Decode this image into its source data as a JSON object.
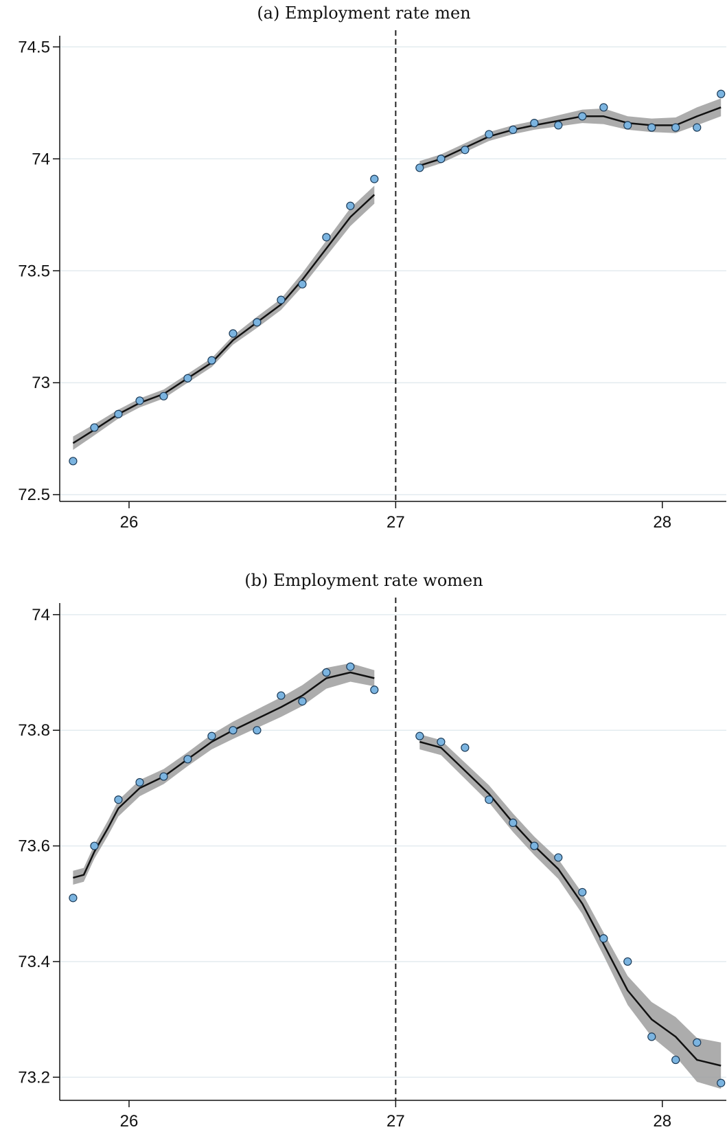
{
  "colors": {
    "marker_fill": "#7bb4e0",
    "marker_stroke": "#1b3a57",
    "fit_line": "#111111",
    "confidence_band": "#9e9e9e",
    "gridline": "#e3ebef",
    "cutoff_line": "#222222"
  },
  "chart_data": [
    {
      "type": "scatter",
      "title": "(a) Employment rate men",
      "xlabel": "",
      "ylabel": "",
      "xlim": [
        25.74,
        28.24
      ],
      "ylim": [
        72.47,
        74.55
      ],
      "x_ticks": [
        26,
        27,
        28
      ],
      "x_tick_labels": [
        "26",
        "27",
        "28"
      ],
      "y_ticks": [
        72.5,
        73,
        73.5,
        74,
        74.5
      ],
      "y_tick_labels": [
        "72.5",
        "73",
        "73.5",
        "74",
        "74.5"
      ],
      "grid": "horizontal",
      "legend": "none",
      "cutoff_x": 27,
      "points": {
        "x": [
          25.79,
          25.87,
          25.96,
          26.04,
          26.13,
          26.22,
          26.31,
          26.39,
          26.48,
          26.57,
          26.65,
          26.74,
          26.83,
          26.92,
          27.09,
          27.17,
          27.26,
          27.35,
          27.44,
          27.52,
          27.61,
          27.7,
          27.78,
          27.87,
          27.96,
          28.05,
          28.13,
          28.22
        ],
        "y": [
          72.65,
          72.8,
          72.86,
          72.92,
          72.94,
          73.02,
          73.1,
          73.22,
          73.27,
          73.37,
          73.44,
          73.65,
          73.79,
          73.91,
          73.96,
          74.0,
          74.04,
          74.11,
          74.13,
          74.16,
          74.15,
          74.19,
          74.23,
          74.15,
          74.14,
          74.14,
          74.14,
          74.29
        ]
      },
      "fit_segments": [
        {
          "x": [
            25.79,
            25.87,
            25.96,
            26.04,
            26.13,
            26.22,
            26.31,
            26.39,
            26.48,
            26.57,
            26.65,
            26.74,
            26.83,
            26.92
          ],
          "y": [
            72.73,
            72.79,
            72.86,
            72.91,
            72.95,
            73.02,
            73.09,
            73.19,
            73.27,
            73.35,
            73.46,
            73.6,
            73.74,
            73.84
          ],
          "band": [
            0.03,
            0.025,
            0.02,
            0.02,
            0.02,
            0.02,
            0.02,
            0.02,
            0.025,
            0.025,
            0.03,
            0.035,
            0.04,
            0.04
          ]
        },
        {
          "x": [
            27.09,
            27.17,
            27.26,
            27.35,
            27.44,
            27.52,
            27.61,
            27.7,
            27.78,
            27.87,
            27.96,
            28.05,
            28.13,
            28.22
          ],
          "y": [
            73.97,
            74.0,
            74.05,
            74.1,
            74.13,
            74.15,
            74.17,
            74.19,
            74.19,
            74.16,
            74.15,
            74.15,
            74.19,
            74.23
          ],
          "band": [
            0.02,
            0.02,
            0.02,
            0.02,
            0.02,
            0.02,
            0.025,
            0.03,
            0.035,
            0.03,
            0.03,
            0.035,
            0.04,
            0.04
          ]
        }
      ]
    },
    {
      "type": "scatter",
      "title": "(b) Employment rate women",
      "xlabel": "",
      "ylabel": "",
      "xlim": [
        25.74,
        28.24
      ],
      "ylim": [
        73.16,
        74.02
      ],
      "x_ticks": [
        26,
        27,
        28
      ],
      "x_tick_labels": [
        "26",
        "27",
        "28"
      ],
      "y_ticks": [
        73.2,
        73.4,
        73.6,
        73.8,
        74
      ],
      "y_tick_labels": [
        "73.2",
        "73.4",
        "73.6",
        "73.8",
        "74"
      ],
      "grid": "horizontal",
      "legend": "none",
      "cutoff_x": 27,
      "points": {
        "x": [
          25.79,
          25.87,
          25.96,
          26.04,
          26.13,
          26.22,
          26.31,
          26.39,
          26.48,
          26.57,
          26.65,
          26.74,
          26.83,
          26.92,
          27.09,
          27.17,
          27.26,
          27.35,
          27.44,
          27.52,
          27.61,
          27.7,
          27.78,
          27.87,
          27.96,
          28.05,
          28.13,
          28.22
        ],
        "y": [
          73.51,
          73.6,
          73.68,
          73.71,
          73.72,
          73.75,
          73.79,
          73.8,
          73.8,
          73.86,
          73.85,
          73.9,
          73.91,
          73.87,
          73.79,
          73.78,
          73.77,
          73.68,
          73.64,
          73.6,
          73.58,
          73.52,
          73.44,
          73.4,
          73.27,
          73.23,
          73.26,
          73.19
        ]
      },
      "fit_segments": [
        {
          "x": [
            25.79,
            25.83,
            25.87,
            25.92,
            25.96,
            26.04,
            26.13,
            26.22,
            26.31,
            26.39,
            26.48,
            26.57,
            26.65,
            26.74,
            26.83,
            26.92
          ],
          "y": [
            73.545,
            73.55,
            73.59,
            73.63,
            73.665,
            73.7,
            73.72,
            73.75,
            73.78,
            73.8,
            73.82,
            73.84,
            73.86,
            73.89,
            73.9,
            73.89
          ],
          "band": [
            0.012,
            0.012,
            0.012,
            0.013,
            0.014,
            0.014,
            0.013,
            0.012,
            0.013,
            0.015,
            0.016,
            0.017,
            0.018,
            0.018,
            0.016,
            0.014
          ]
        },
        {
          "x": [
            27.09,
            27.17,
            27.26,
            27.35,
            27.44,
            27.52,
            27.61,
            27.7,
            27.78,
            27.87,
            27.96,
            28.05,
            28.13,
            28.22
          ],
          "y": [
            73.78,
            73.77,
            73.73,
            73.69,
            73.64,
            73.6,
            73.56,
            73.5,
            73.43,
            73.35,
            73.3,
            73.27,
            73.23,
            73.22
          ],
          "band": [
            0.013,
            0.013,
            0.014,
            0.015,
            0.016,
            0.016,
            0.017,
            0.018,
            0.02,
            0.025,
            0.03,
            0.034,
            0.038,
            0.04
          ]
        }
      ]
    }
  ]
}
